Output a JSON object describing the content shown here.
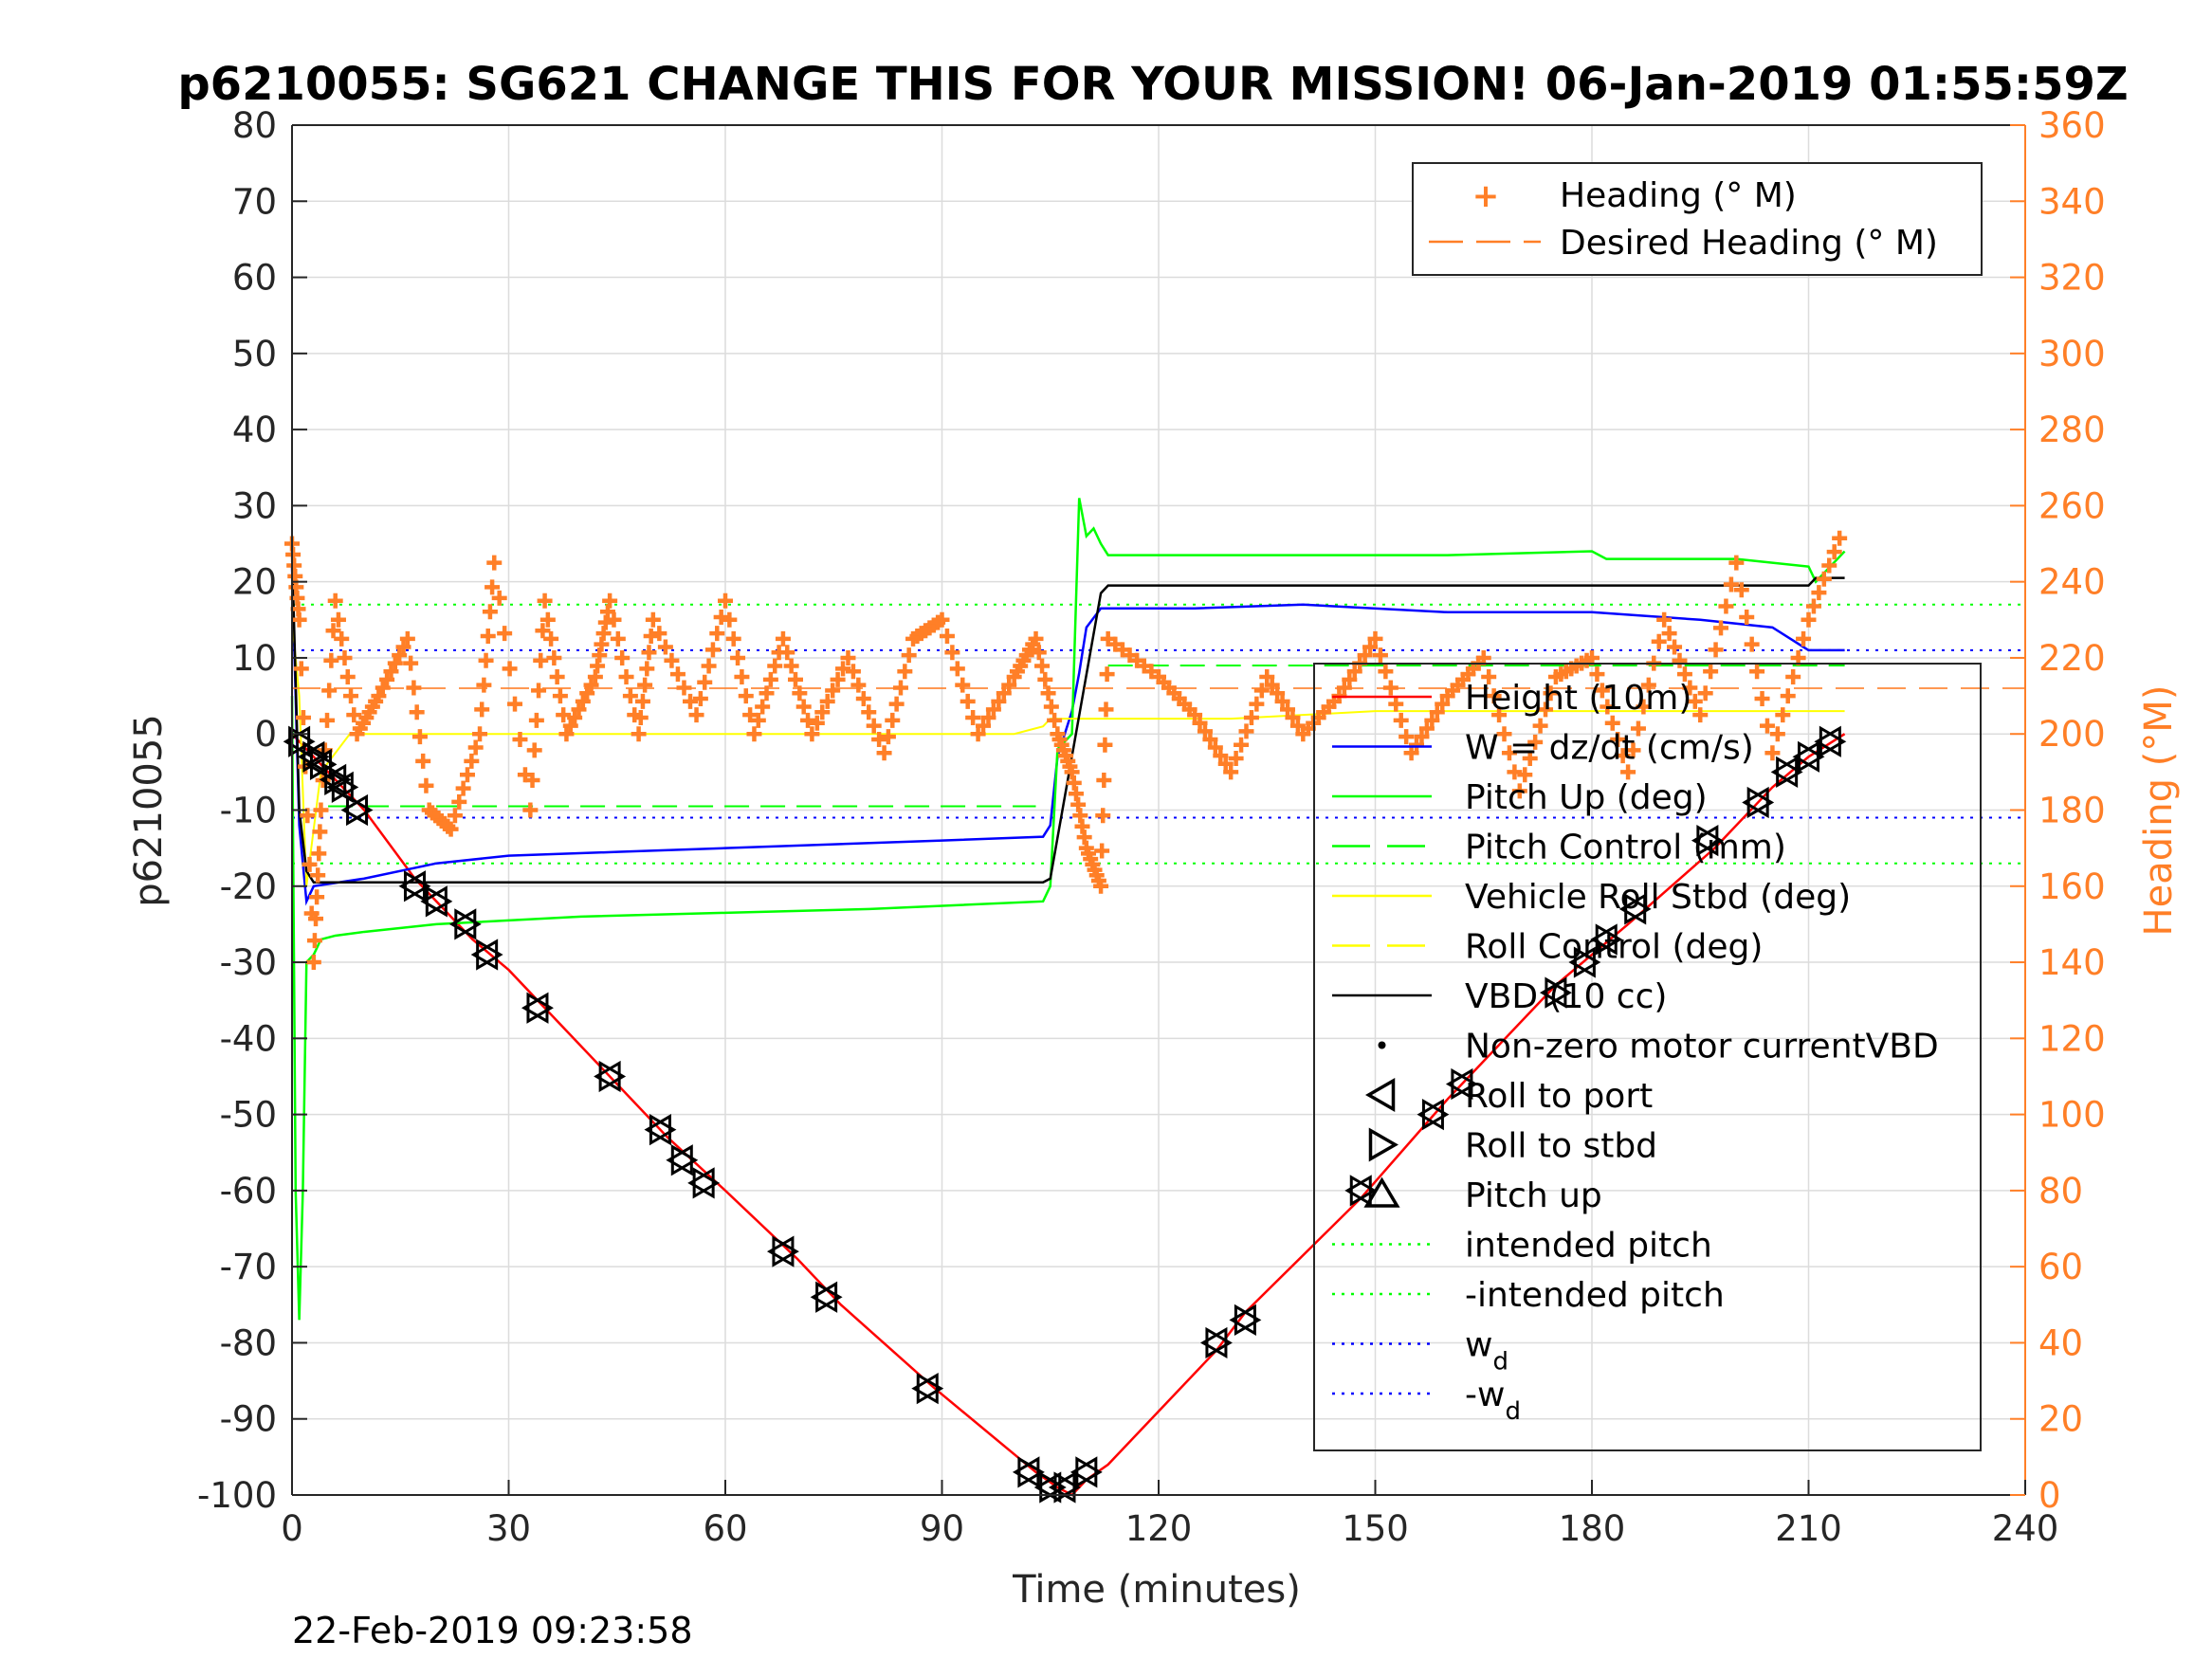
{
  "page": {
    "timestamp": "22-Feb-2019 09:23:58"
  },
  "chart_data": {
    "type": "line",
    "title": "p6210055: SG621 CHANGE THIS FOR YOUR MISSION! 06-Jan-2019 01:55:59Z",
    "xlabel": "Time (minutes)",
    "ylabel": "p6210055",
    "ylabel_right": "Heading (°M)",
    "xlim": [
      0,
      240
    ],
    "ylim": [
      -100,
      80
    ],
    "ylim_right": [
      0,
      360
    ],
    "x_ticks": [
      "0",
      "30",
      "60",
      "90",
      "120",
      "150",
      "180",
      "210",
      "240"
    ],
    "y_ticks": [
      "80",
      "70",
      "60",
      "50",
      "40",
      "30",
      "20",
      "10",
      "0",
      "-10",
      "-20",
      "-30",
      "-40",
      "-50",
      "-60",
      "-70",
      "-80",
      "-90",
      "-100"
    ],
    "y_right_ticks": [
      "360",
      "340",
      "320",
      "300",
      "280",
      "260",
      "240",
      "220",
      "200",
      "180",
      "160",
      "140",
      "120",
      "100",
      "80",
      "60",
      "40",
      "20",
      "0"
    ],
    "grid": true,
    "colors": {
      "heading": "#ff7f27",
      "height": "#ff0000",
      "w": "#0000ff",
      "pitch": "#00ff00",
      "roll": "#ffff00",
      "vbd": "#000000",
      "wd": "#0000ff"
    },
    "legend_right_axis": {
      "placement": "top-right",
      "entries": [
        {
          "label": "Heading (° M)",
          "marker": "+",
          "color": "#ff7f27"
        },
        {
          "label": "Desired Heading (° M)",
          "style": "dashed",
          "color": "#ff7f27"
        }
      ]
    },
    "legend_left_axis": {
      "placement": "right",
      "entries": [
        {
          "label": "Height (10m)",
          "style": "solid",
          "color": "#ff0000"
        },
        {
          "label": "W = dz/dt (cm/s)",
          "style": "solid",
          "color": "#0000ff"
        },
        {
          "label": "Pitch Up (deg)",
          "style": "solid",
          "color": "#00ff00"
        },
        {
          "label": "Pitch Control (mm)",
          "style": "dashed",
          "color": "#00ff00"
        },
        {
          "label": "Vehicle Roll Stbd (deg)",
          "style": "solid",
          "color": "#ffff00"
        },
        {
          "label": "Roll Control (deg)",
          "style": "dashed",
          "color": "#ffff00"
        },
        {
          "label": "VBD (10 cc)",
          "style": "solid",
          "color": "#000000"
        },
        {
          "label": "Non-zero motor currentVBD",
          "marker": "dot",
          "color": "#000000"
        },
        {
          "label": "Roll to port",
          "marker": "tri-left",
          "color": "#000000"
        },
        {
          "label": "Roll to stbd",
          "marker": "tri-right",
          "color": "#000000"
        },
        {
          "label": "Pitch up",
          "marker": "tri-up",
          "color": "#000000"
        },
        {
          "label": "intended pitch",
          "style": "dotted",
          "color": "#00ff00"
        },
        {
          "label": "-intended pitch",
          "style": "dotted",
          "color": "#00ff00"
        },
        {
          "label": "w",
          "sub": "d",
          "style": "dotted",
          "color": "#0000ff"
        },
        {
          "label": "-w",
          "sub": "d",
          "style": "dotted",
          "color": "#0000ff"
        }
      ]
    },
    "series": [
      {
        "name": "Height (10m)",
        "axis": "left",
        "x": [
          0,
          2,
          5,
          10,
          17,
          20,
          25,
          30,
          35,
          45,
          52,
          60,
          70,
          76,
          89,
          103,
          106,
          108,
          110,
          113,
          128,
          132,
          148,
          160,
          175,
          185,
          197,
          205,
          210,
          215
        ],
        "y": [
          0,
          -2,
          -5,
          -10,
          -19,
          -22,
          -27,
          -31,
          -36,
          -46,
          -53,
          -60,
          -69,
          -75,
          -86,
          -97,
          -99,
          -100,
          -98,
          -96,
          -81,
          -76,
          -61,
          -48,
          -33,
          -25,
          -15,
          -7,
          -3,
          0
        ]
      },
      {
        "name": "W = dz/dt (cm/s)",
        "axis": "left",
        "x": [
          0,
          1,
          2,
          3,
          10,
          20,
          30,
          45,
          60,
          75,
          90,
          104,
          105,
          106,
          107,
          108,
          109,
          110,
          112,
          125,
          140,
          160,
          180,
          195,
          205,
          210,
          215
        ],
        "y": [
          22,
          -12,
          -22,
          -20,
          -19,
          -17,
          -16,
          -15.5,
          -15,
          -14.5,
          -14,
          -13.5,
          -12,
          -3,
          0,
          3,
          8,
          14,
          16.5,
          16.5,
          17,
          16,
          16,
          15,
          14,
          11,
          11
        ]
      },
      {
        "name": "Pitch Up (deg)",
        "axis": "left",
        "x": [
          0,
          0.5,
          1,
          1.5,
          2,
          3,
          4,
          6,
          10,
          20,
          40,
          60,
          80,
          104,
          105,
          106,
          107,
          108,
          109,
          110,
          111,
          112,
          113,
          130,
          160,
          180,
          182,
          200,
          210,
          211,
          215
        ],
        "y": [
          5,
          -60,
          -77,
          -60,
          -30,
          -29,
          -27,
          -26.5,
          -26,
          -25,
          -24,
          -23.5,
          -23,
          -22,
          -20,
          -2,
          -1,
          0,
          31,
          26,
          27,
          25,
          23.5,
          23.5,
          23.5,
          24,
          23,
          23,
          22,
          20,
          24
        ]
      },
      {
        "name": "Vehicle Roll Stbd (deg)",
        "axis": "left",
        "x": [
          0,
          1,
          2,
          4,
          8,
          20,
          40,
          60,
          80,
          100,
          104,
          105,
          110,
          130,
          150,
          170,
          190,
          215
        ],
        "y": [
          15,
          5,
          -20,
          -5,
          0,
          0,
          0,
          0,
          0,
          0,
          1,
          2,
          2,
          2,
          3,
          3,
          3,
          3
        ]
      },
      {
        "name": "VBD (10 cc)",
        "axis": "left",
        "x": [
          0,
          1,
          2,
          3,
          104,
          105,
          112,
          113,
          210,
          211,
          215
        ],
        "y": [
          24,
          -10,
          -18,
          -19.5,
          -19.5,
          -19,
          18.5,
          19.5,
          19.5,
          20.5,
          20.5
        ]
      },
      {
        "name": "Heading (° M)",
        "axis": "right",
        "x": [
          0,
          1,
          3,
          4,
          6,
          9,
          12,
          16,
          19,
          22,
          26,
          28,
          33,
          35,
          38,
          42,
          44,
          48,
          50,
          56,
          60,
          64,
          68,
          72,
          77,
          82,
          86,
          90,
          95,
          100,
          103,
          106,
          108,
          110,
          112,
          113,
          120,
          125,
          130,
          135,
          140,
          145,
          150,
          155,
          160,
          165,
          170,
          175,
          180,
          185,
          190,
          195,
          200,
          205,
          210,
          215
        ],
        "y": [
          250,
          230,
          140,
          180,
          235,
          200,
          210,
          225,
          180,
          175,
          200,
          245,
          180,
          235,
          200,
          215,
          235,
          200,
          230,
          205,
          235,
          200,
          225,
          200,
          220,
          195,
          225,
          230,
          200,
          215,
          225,
          200,
          190,
          170,
          160,
          225,
          215,
          205,
          190,
          215,
          200,
          210,
          225,
          195,
          210,
          220,
          185,
          215,
          220,
          190,
          230,
          205,
          245,
          195,
          230,
          255
        ]
      },
      {
        "name": "Desired Heading (° M)",
        "axis": "right",
        "x": [
          0,
          240
        ],
        "y": [
          212,
          212
        ]
      }
    ],
    "reference_lines": [
      {
        "name": "intended pitch",
        "axis": "left",
        "y": 17
      },
      {
        "name": "-intended pitch",
        "axis": "left",
        "y": -17
      },
      {
        "name": "w_d",
        "axis": "left",
        "y": 11
      },
      {
        "name": "-w_d",
        "axis": "left",
        "y": -11
      },
      {
        "name": "Pitch Control (mm)",
        "axis": "left",
        "segments": [
          {
            "x": [
              5,
              103
            ],
            "y": -9.5
          },
          {
            "x": [
              113,
              215
            ],
            "y": 9
          }
        ]
      }
    ],
    "markers": {
      "x": [
        1,
        3,
        4,
        6,
        7,
        9,
        17,
        20,
        24,
        27,
        34,
        44,
        51,
        54,
        57,
        68,
        74,
        88,
        102,
        105,
        107,
        110,
        128,
        132,
        148,
        158,
        162,
        175,
        179,
        182,
        186,
        196,
        203,
        207,
        210,
        213
      ],
      "y": [
        -1,
        -3,
        -4,
        -6,
        -7,
        -10,
        -20,
        -22,
        -25,
        -29,
        -36,
        -45,
        -52,
        -56,
        -59,
        -68,
        -74,
        -86,
        -97,
        -99,
        -99,
        -97,
        -80,
        -77,
        -60,
        -50,
        -46,
        -34,
        -30,
        -27,
        -23,
        -14,
        -9,
        -5,
        -3,
        -1
      ]
    }
  }
}
